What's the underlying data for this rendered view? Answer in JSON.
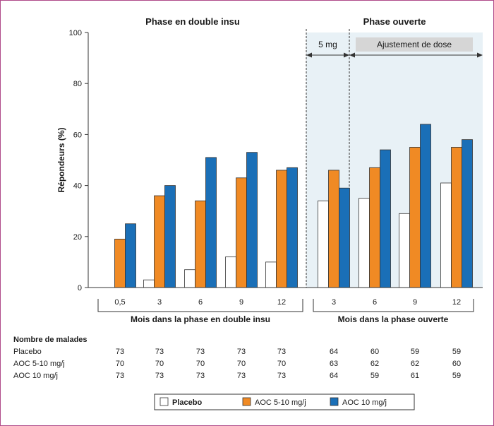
{
  "chart_data": {
    "type": "bar",
    "phases": {
      "double_blind": "Phase en double insu",
      "open": "Phase ouverte"
    },
    "open_subphases": {
      "fixed": "5 mg",
      "adjust": "Ajustement de dose"
    },
    "ylabel": "Répondeurs (%)",
    "ylim": [
      0,
      100
    ],
    "y_ticks": [
      "0",
      "20",
      "40",
      "60",
      "80",
      "100"
    ],
    "xgroup_labels": {
      "double_blind": "Mois dans la phase en double insu",
      "open": "Mois dans la phase ouverte"
    },
    "categories": [
      "0,5",
      "3",
      "6",
      "9",
      "12",
      "3",
      "6",
      "9",
      "12"
    ],
    "series": [
      {
        "name": "Placebo",
        "color": "#ffffff",
        "values": [
          null,
          3,
          7,
          12,
          10,
          34,
          35,
          29,
          41
        ]
      },
      {
        "name": "AOC 5-10 mg/j",
        "color": "#f08a24",
        "values": [
          19,
          36,
          34,
          43,
          46,
          46,
          47,
          55,
          55
        ]
      },
      {
        "name": "AOC 10 mg/j",
        "color": "#1a6fb7",
        "values": [
          25,
          40,
          51,
          53,
          47,
          39,
          54,
          64,
          58
        ]
      }
    ],
    "patients_table": {
      "title": "Nombre de malades",
      "rows": [
        {
          "label": "Placebo",
          "values": [
            "73",
            "73",
            "73",
            "73",
            "73",
            "64",
            "60",
            "59",
            "59"
          ]
        },
        {
          "label": "AOC 5-10 mg/j",
          "values": [
            "70",
            "70",
            "70",
            "70",
            "70",
            "63",
            "62",
            "62",
            "60"
          ]
        },
        {
          "label": "AOC 10 mg/j",
          "values": [
            "73",
            "73",
            "73",
            "73",
            "73",
            "64",
            "59",
            "61",
            "59"
          ]
        }
      ]
    },
    "legend": {
      "placement": "bottom-right",
      "items": [
        "Placebo",
        "AOC 5-10 mg/j",
        "AOC 10 mg/j"
      ]
    },
    "colors": {
      "open_phase_shade": "#e8f1f6",
      "adjust_box": "#d6d6d6"
    }
  }
}
